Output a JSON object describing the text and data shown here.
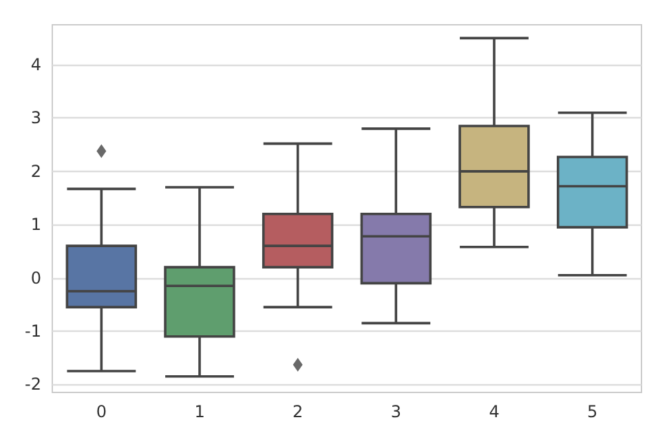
{
  "chart_data": {
    "type": "box",
    "categories": [
      "0",
      "1",
      "2",
      "3",
      "4",
      "5"
    ],
    "colors": [
      "#5875a4",
      "#5f9e6e",
      "#b55d60",
      "#857aab",
      "#c6b47f",
      "#6cb2c6"
    ],
    "boxes": [
      {
        "low": -1.75,
        "q1": -0.55,
        "median": -0.25,
        "q3": 0.6,
        "high": 1.67
      },
      {
        "low": -1.85,
        "q1": -1.1,
        "median": -0.15,
        "q3": 0.2,
        "high": 1.7
      },
      {
        "low": -0.55,
        "q1": 0.2,
        "median": 0.6,
        "q3": 1.2,
        "high": 2.52
      },
      {
        "low": -0.85,
        "q1": -0.1,
        "median": 0.78,
        "q3": 1.2,
        "high": 2.8
      },
      {
        "low": 0.58,
        "q1": 1.33,
        "median": 2.0,
        "q3": 2.85,
        "high": 4.5
      },
      {
        "low": 0.05,
        "q1": 0.95,
        "median": 1.72,
        "q3": 2.27,
        "high": 3.1
      }
    ],
    "series": [
      {
        "type": "scatter",
        "x": [
          "0",
          "2"
        ],
        "values": [
          2.38,
          -1.63
        ],
        "color": "#444444",
        "marker": "diamond"
      }
    ],
    "ylim": [
      -2.15,
      4.75
    ],
    "yticks": [
      -2,
      -1,
      0,
      1,
      2,
      3,
      4
    ],
    "grid": "y"
  }
}
